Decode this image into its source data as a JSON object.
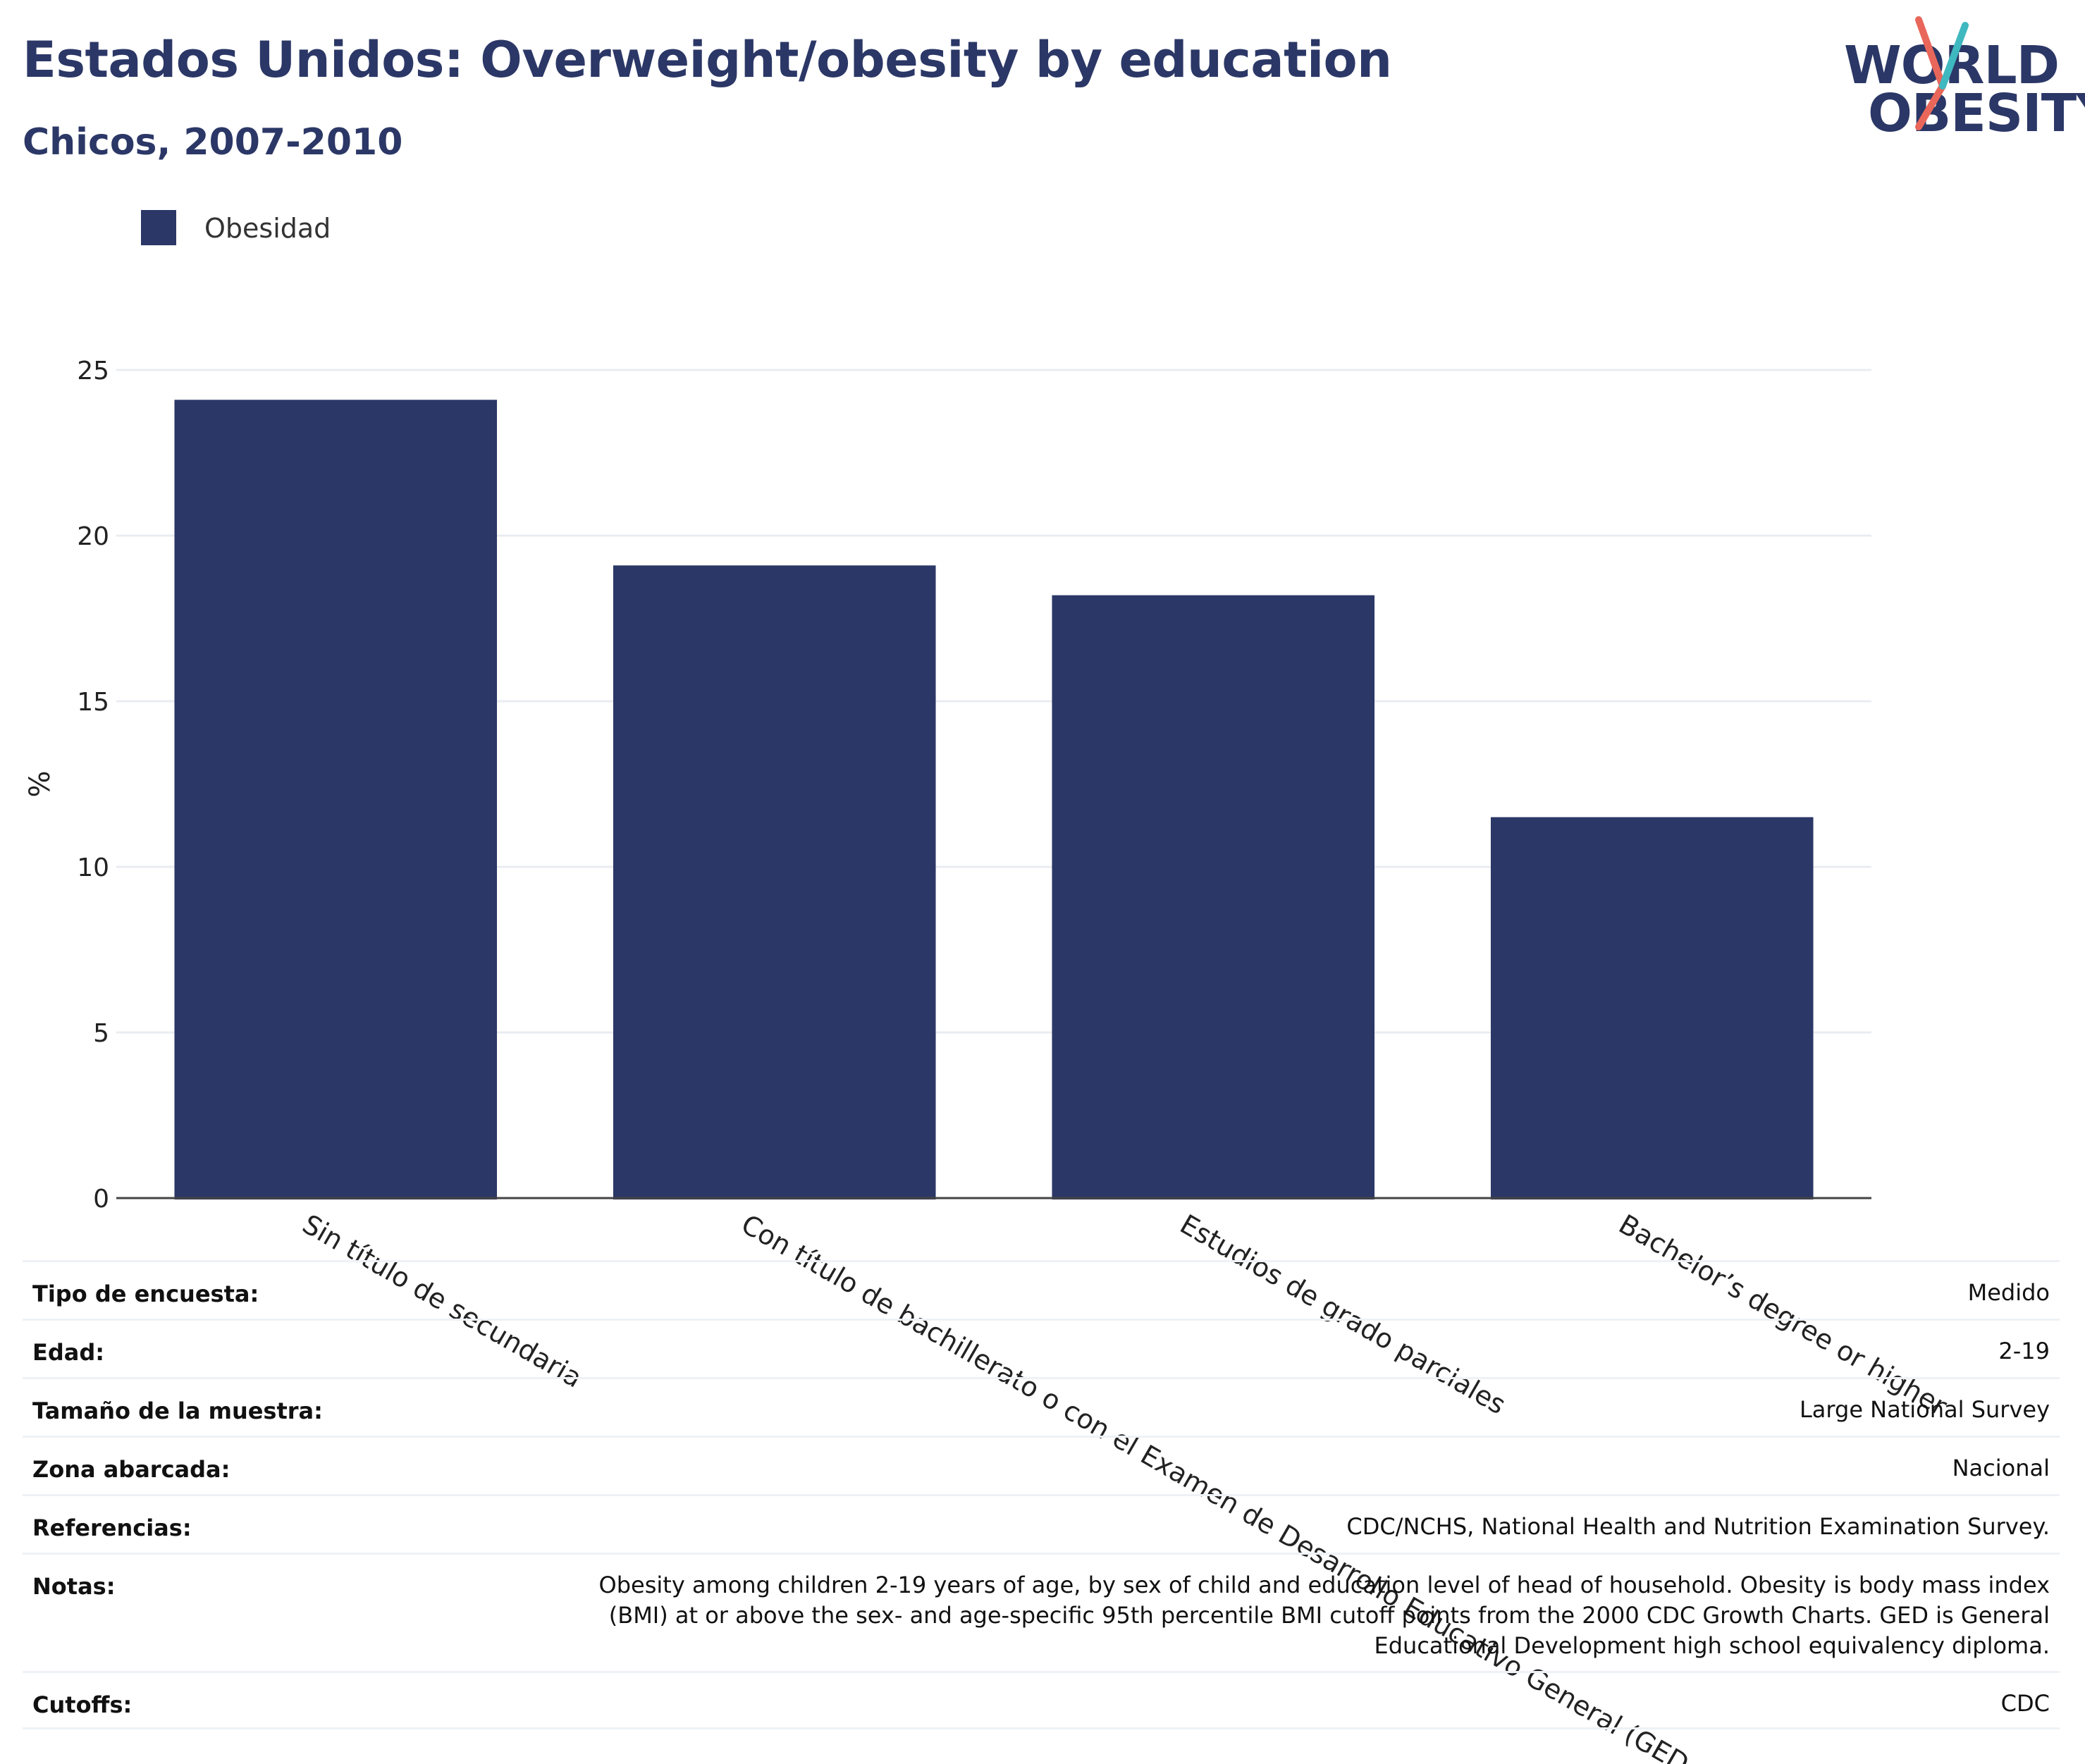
{
  "header": {
    "title": "Estados Unidos: Overweight/obesity by education",
    "subtitle": "Chicos, 2007-2010"
  },
  "logo": {
    "line1": "WORLD",
    "line2": "OBESITY",
    "colors": {
      "text": "#2b3766",
      "slash_teal": "#3fb8bf",
      "slash_red": "#e8675a"
    }
  },
  "legend": {
    "label": "Obesidad",
    "color": "#2b3766"
  },
  "chart_data": {
    "type": "bar",
    "categories": [
      "Sin título de secundaria",
      "Con título de bachillerato o con el Examen de Desarrollo Educativo General (GED en inglés)",
      "Estudios de grado parciales",
      "Bachelor’s degree or higher"
    ],
    "series": [
      {
        "name": "Obesidad",
        "values": [
          24.1,
          19.1,
          18.2,
          11.5
        ],
        "color": "#2b3766"
      }
    ],
    "xlabel": "",
    "ylabel": "%",
    "ylim": [
      0,
      25
    ],
    "yticks": [
      "0",
      "5",
      "10",
      "15",
      "20",
      "25"
    ],
    "grid": true,
    "legend_position": "top-left"
  },
  "table": {
    "rows": [
      {
        "key": "Tipo de encuesta:",
        "value": "Medido"
      },
      {
        "key": "Edad:",
        "value": "2-19"
      },
      {
        "key": "Tamaño de la muestra:",
        "value": "Large National Survey"
      },
      {
        "key": "Zona abarcada:",
        "value": "Nacional"
      },
      {
        "key": "Referencias:",
        "value": "CDC/NCHS, National Health and Nutrition Examination Survey."
      },
      {
        "key": "Notas:",
        "value": "Obesity among children 2-19 years of age, by sex of child and education level of head of household. Obesity is body mass index (BMI) at or above the sex- and age-specific 95th percentile BMI cutoff points from the 2000 CDC Growth Charts. GED is General Educational Development high school equivalency diploma."
      },
      {
        "key": "Cutoffs:",
        "value": "CDC"
      }
    ]
  }
}
